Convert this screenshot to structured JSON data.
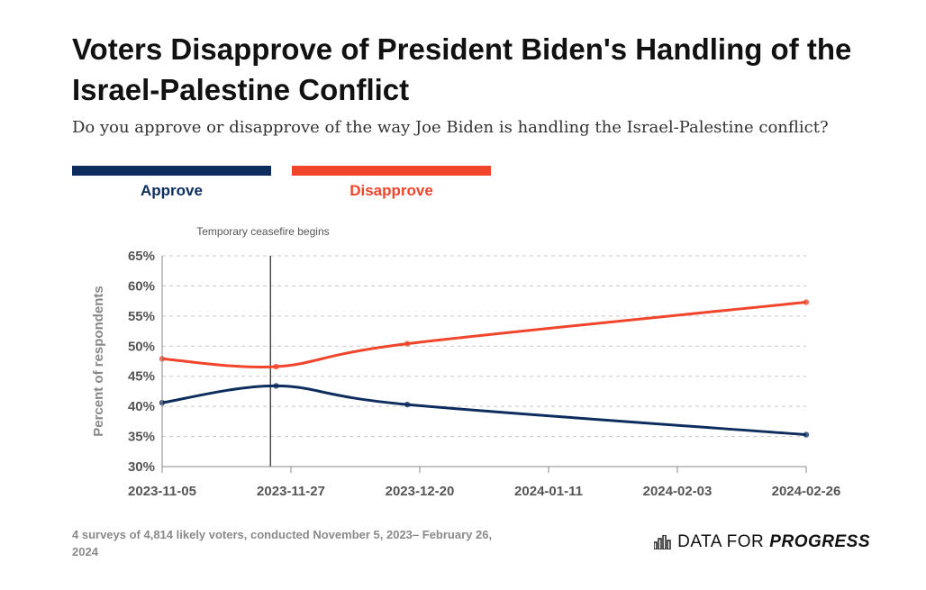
{
  "header": {
    "title": "Voters Disapprove of President Biden's Handling of the Israel-Palestine Conflict",
    "subtitle": "Do you approve or disapprove of the way Joe Biden is handling the Israel-Palestine conflict?"
  },
  "colors": {
    "approve": "#0d2d5e",
    "disapprove": "#f0452b",
    "grid": "#c8c8c8",
    "axis_text": "#555555"
  },
  "chart_data": {
    "type": "line",
    "title": "",
    "xlabel": "",
    "ylabel": "Percent of respondents",
    "ylim": [
      30,
      65
    ],
    "yticks": [
      "30%",
      "35%",
      "40%",
      "45%",
      "50%",
      "55%",
      "60%",
      "65%"
    ],
    "x_range": [
      "2023-11-05",
      "2024-02-26"
    ],
    "x_ticks": [
      "2023-11-05",
      "2023-11-27",
      "2023-12-20",
      "2024-01-11",
      "2024-02-03",
      "2024-02-26"
    ],
    "series": [
      {
        "name": "Approve",
        "x": [
          "2023-11-05",
          "2023-11-25",
          "2023-12-18",
          "2024-02-26"
        ],
        "values": [
          40.6,
          43.4,
          40.3,
          35.3
        ]
      },
      {
        "name": "Disapprove",
        "x": [
          "2023-11-05",
          "2023-11-25",
          "2023-12-18",
          "2024-02-26"
        ],
        "values": [
          47.9,
          46.6,
          50.4,
          57.3
        ]
      }
    ],
    "annotations": [
      {
        "x": "2023-11-24",
        "label": "Temporary ceasefire begins"
      }
    ],
    "legend": "top-left",
    "grid": true
  },
  "legend": {
    "approve_label": "Approve",
    "disapprove_label": "Disapprove"
  },
  "footer": {
    "note": "4 surveys of 4,814 likely voters, conducted November 5, 2023– February 26, 2024",
    "brand_light": "DATA FOR",
    "brand_bold": "PROGRESS"
  }
}
